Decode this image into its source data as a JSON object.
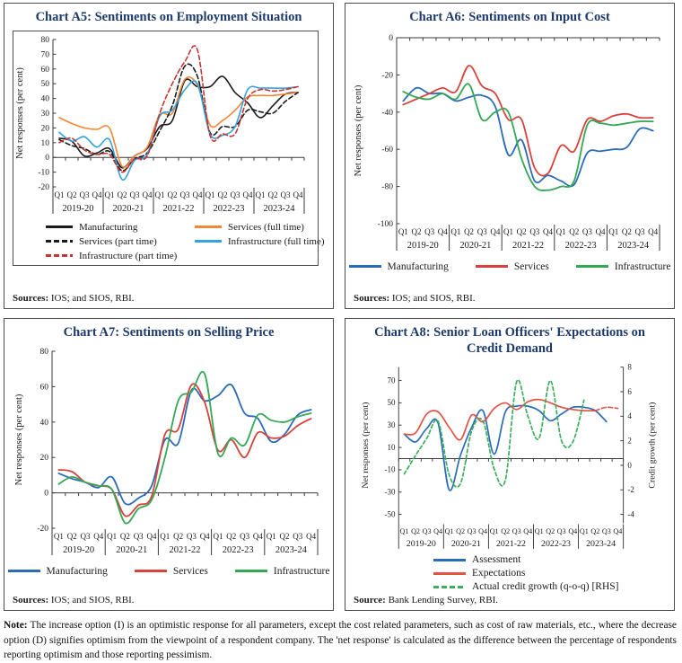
{
  "page": {
    "note_label": "Note:",
    "note_text": "The increase option (I) is an optimistic response for all parameters, except the cost related parameters, such as cost of raw materials, etc., where the decrease option (D) signifies optimism from the viewpoint of a respondent company. The 'net response' is calculated as the difference between the percentage of respondents reporting optimism and those reporting pessimism."
  },
  "chart_data": [
    {
      "id": "a5",
      "type": "line",
      "title": "Chart A5: Sentiments on Employment Situation",
      "ylabel": "Net responses (per cent)",
      "sources_label": "Sources:",
      "sources_text": "IOS; and SIOS, RBI.",
      "quarters": [
        "Q1",
        "Q2",
        "Q3",
        "Q4"
      ],
      "years": [
        "2019-20",
        "2020-21",
        "2021-22",
        "2022-23",
        "2023-24"
      ],
      "ymin": -20,
      "ymax": 80,
      "yticks": [
        80,
        70,
        60,
        50,
        40,
        30,
        20,
        10,
        0,
        -10,
        -20
      ],
      "series": [
        {
          "name": "Manufacturing",
          "color": "#1a1a1a",
          "dash": false,
          "values": [
            13,
            11,
            1,
            3,
            6,
            -7,
            1,
            6,
            21,
            25,
            52,
            48,
            48,
            55,
            44,
            37,
            27,
            35,
            43,
            44
          ]
        },
        {
          "name": "Services (full time)",
          "color": "#F58634",
          "dash": false,
          "values": [
            27,
            23,
            20,
            19,
            20,
            -6,
            1,
            7,
            29,
            30,
            53,
            49,
            22,
            25,
            32,
            41,
            42,
            42,
            43,
            44
          ]
        },
        {
          "name": "Services (part time)",
          "color": "#1a1a1a",
          "dash": true,
          "values": [
            12,
            8,
            6,
            2,
            4,
            -9,
            -1,
            3,
            18,
            35,
            62,
            55,
            17,
            21,
            21,
            32,
            31,
            30,
            38,
            44
          ]
        },
        {
          "name": "Infrastructure (full time)",
          "color": "#35A3DC",
          "dash": false,
          "values": [
            17,
            11,
            14,
            7,
            12,
            -15,
            -2,
            2,
            28,
            32,
            46,
            50,
            16,
            15,
            21,
            46,
            47,
            47,
            47,
            48
          ]
        },
        {
          "name": "Infrastructure (part time)",
          "color": "#C83434",
          "dash": true,
          "values": [
            10,
            13,
            5,
            2,
            2,
            -10,
            -1,
            1,
            30,
            50,
            65,
            73,
            15,
            16,
            16,
            40,
            46,
            45,
            46,
            48
          ]
        }
      ]
    },
    {
      "id": "a6",
      "type": "line",
      "title": "Chart A6: Sentiments on Input Cost",
      "ylabel": "Net responses (per cent)",
      "sources_label": "Sources:",
      "sources_text": "IOS; and SIOS, RBI.",
      "quarters": [
        "Q1",
        "Q2",
        "Q3",
        "Q4"
      ],
      "years": [
        "2019-20",
        "2020-21",
        "2021-22",
        "2022-23",
        "2023-24"
      ],
      "ymin": -100,
      "ymax": 0,
      "yticks": [
        0,
        -20,
        -40,
        -60,
        -80,
        -100
      ],
      "series": [
        {
          "name": "Manufacturing",
          "color": "#2B6CB8",
          "dash": false,
          "values": [
            -34,
            -27,
            -30,
            -30,
            -34,
            -32,
            -31,
            -37,
            -63,
            -55,
            -77,
            -74,
            -77,
            -79,
            -62,
            -61,
            -60,
            -59,
            -49,
            -50
          ]
        },
        {
          "name": "Services",
          "color": "#D8423C",
          "dash": false,
          "values": [
            -36,
            -33,
            -30,
            -27,
            -29,
            -15,
            -26,
            -30,
            -44,
            -44,
            -70,
            -73,
            -58,
            -61,
            -44,
            -45,
            -42,
            -41,
            -43,
            -43
          ]
        },
        {
          "name": "Infrastructure",
          "color": "#35A855",
          "dash": false,
          "values": [
            -29,
            -32,
            -33,
            -30,
            -33,
            -25,
            -44,
            -40,
            -40,
            -65,
            -80,
            -82,
            -80,
            -77,
            -47,
            -46,
            -47,
            -46,
            -45,
            -45
          ]
        }
      ]
    },
    {
      "id": "a7",
      "type": "line",
      "title": "Chart A7: Sentiments on Selling Price",
      "ylabel": "Net responses (per cent)",
      "sources_label": "Sources:",
      "sources_text": "IOS; and SIOS, RBI.",
      "quarters": [
        "Q1",
        "Q2",
        "Q3",
        "Q4"
      ],
      "years": [
        "2019-20",
        "2020-21",
        "2021-22",
        "2022-23",
        "2023-24"
      ],
      "ymin": -20,
      "ymax": 80,
      "yticks": [
        80,
        60,
        40,
        20,
        0,
        -20
      ],
      "series": [
        {
          "name": "Manufacturing",
          "color": "#2B6CB8",
          "dash": false,
          "values": [
            11,
            8,
            6,
            3,
            9,
            -6,
            -3,
            4,
            30,
            28,
            58,
            52,
            55,
            61,
            45,
            42,
            29,
            33,
            44,
            47
          ]
        },
        {
          "name": "Services",
          "color": "#D8423C",
          "dash": false,
          "values": [
            13,
            12,
            6,
            4,
            2,
            -13,
            -7,
            -2,
            33,
            36,
            61,
            51,
            24,
            30,
            20,
            34,
            31,
            32,
            38,
            42
          ]
        },
        {
          "name": "Infrastructure",
          "color": "#35A855",
          "dash": false,
          "values": [
            5,
            9,
            6,
            4,
            2,
            -17,
            -9,
            -4,
            20,
            52,
            57,
            67,
            22,
            31,
            27,
            44,
            41,
            40,
            43,
            45
          ]
        }
      ]
    },
    {
      "id": "a8",
      "type": "line",
      "title": "Chart A8: Senior Loan Officers' Expectations on Credit Demand",
      "ylabel": "Net responses (per cent)",
      "sources_label": "Source:",
      "sources_text": "Bank Lending Survey,  RBI.",
      "quarters": [
        "Q1",
        "Q2",
        "Q3",
        "Q4"
      ],
      "years": [
        "2019-20",
        "2020-21",
        "2021-22",
        "2022-23",
        "2023-24"
      ],
      "ymin": -58,
      "ymax": 82,
      "yticks": [
        70,
        50,
        30,
        10,
        -10,
        -30,
        -50
      ],
      "right_axis": {
        "label": "Credit growth (per cent)",
        "ticks": [
          8,
          6,
          4,
          2,
          0,
          -2,
          -4
        ],
        "a": 11,
        "b": -6
      },
      "series": [
        {
          "name": "Assessment",
          "color": "#2B6CB8",
          "dash": false,
          "values": [
            22,
            15,
            27,
            32,
            -28,
            3,
            28,
            43,
            4,
            42,
            47,
            47,
            43,
            34,
            40,
            46,
            46,
            43,
            33
          ]
        },
        {
          "name": "Expectations",
          "color": "#E45244",
          "dash": false,
          "dash_from": 17,
          "values": [
            22,
            23,
            40,
            42,
            28,
            17,
            39,
            33,
            45,
            50,
            44,
            51,
            53,
            50,
            46,
            44,
            43,
            43,
            46,
            45
          ]
        },
        {
          "name": "Actual credit growth (q-o-q) [RHS]",
          "color": "#3CAE5C",
          "dash": true,
          "axis": "right",
          "values": [
            -0.7,
            0.8,
            2.2,
            3.6,
            -0.8,
            -1.5,
            2.8,
            3.6,
            -0.3,
            -1.2,
            6.8,
            4.0,
            2.2,
            6.9,
            2.0,
            1.9,
            5.3
          ]
        }
      ]
    }
  ]
}
